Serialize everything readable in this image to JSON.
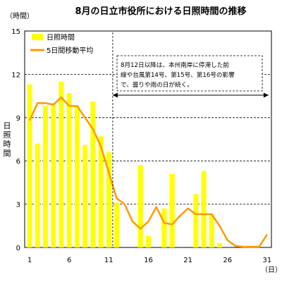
{
  "chart_data": {
    "type": "bar",
    "title": "8月の日立市役所における日照時間の推移",
    "y_unit_label": "（時間）",
    "x_unit_label": "（日）",
    "ylabel": "日照時間",
    "ylim": [
      0,
      15
    ],
    "yticks": [
      0,
      3,
      6,
      9,
      12,
      15
    ],
    "xlim": [
      1,
      31
    ],
    "xticks": [
      1,
      6,
      11,
      16,
      21,
      26,
      31
    ],
    "grid": "horizontal dashed at 3, 6, 9, 12",
    "legend": {
      "placement": "top-left"
    },
    "colors": {
      "bars": "#ffff00",
      "line": "#ff9900"
    },
    "series": [
      {
        "name": "日照時間",
        "kind": "bar",
        "x": [
          1,
          2,
          3,
          4,
          5,
          6,
          7,
          8,
          9,
          10,
          11,
          12,
          13,
          14,
          15,
          16,
          17,
          18,
          19,
          20,
          21,
          22,
          23,
          24,
          25,
          26,
          27,
          28,
          29,
          30,
          31
        ],
        "values": [
          11.3,
          7.2,
          9.8,
          10.0,
          11.5,
          10.7,
          9.8,
          7.1,
          10.1,
          7.7,
          6.6,
          3.1,
          0,
          0,
          5.7,
          0.8,
          0,
          2.7,
          5.1,
          0,
          0,
          3.7,
          5.3,
          2.3,
          0.3,
          0,
          0,
          0,
          0,
          0,
          0
        ]
      },
      {
        "name": "5日間移動平均",
        "kind": "line",
        "x": [
          1,
          2,
          3,
          4,
          5,
          6,
          7,
          8,
          9,
          10,
          11,
          12,
          13,
          14,
          15,
          16,
          17,
          18,
          19,
          20,
          21,
          22,
          23,
          24,
          25,
          26,
          27,
          28,
          29,
          30,
          31
        ],
        "values": [
          8.8,
          10.0,
          10.0,
          9.9,
          10.4,
          9.8,
          9.8,
          9.0,
          8.2,
          7.0,
          5.2,
          3.4,
          3.0,
          1.8,
          1.3,
          1.8,
          2.8,
          1.7,
          1.6,
          2.2,
          2.7,
          2.3,
          2.3,
          2.3,
          1.5,
          0.5,
          0.1,
          0.05,
          0.05,
          0.05,
          0.9
        ]
      }
    ],
    "annotation": {
      "text_lines": [
        "8月12日以降は、本州南岸に停滞した前",
        "線や台風第14号、第15号、第16号の影響",
        "で、曇りや雨の日が続く。"
      ],
      "arrow_from_x": 11.5,
      "arrow_to_x": 31
    }
  }
}
